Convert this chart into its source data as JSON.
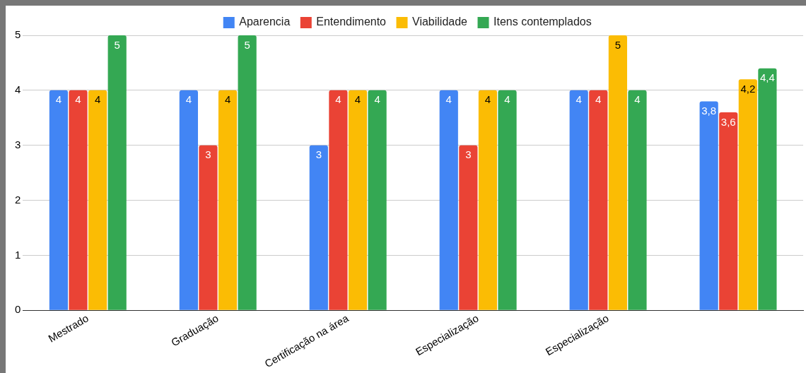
{
  "chart_data": {
    "type": "bar",
    "categories": [
      "Mestrado",
      "Graduação",
      "Certificação na área",
      "Especialização",
      "Especialização",
      null
    ],
    "series": [
      {
        "name": "Aparencia",
        "color": "#4285f4",
        "values": [
          4,
          4,
          3,
          4,
          4,
          3.8
        ],
        "value_labels": [
          "4",
          "4",
          "3",
          "4",
          "4",
          "3,8"
        ]
      },
      {
        "name": "Entendimento",
        "color": "#ea4335",
        "values": [
          4,
          3,
          4,
          3,
          4,
          3.6
        ],
        "value_labels": [
          "4",
          "3",
          "4",
          "3",
          "4",
          "3,6"
        ]
      },
      {
        "name": "Viabilidade",
        "color": "#fbbc04",
        "values": [
          4,
          4,
          4,
          4,
          5,
          4.2
        ],
        "value_labels": [
          "4",
          "4",
          "4",
          "4",
          "5",
          "4,2"
        ]
      },
      {
        "name": "Itens contemplados",
        "color": "#34a853",
        "values": [
          5,
          5,
          4,
          4,
          4,
          4.4
        ],
        "value_labels": [
          "5",
          "5",
          "4",
          "4",
          "4",
          "4,4"
        ]
      }
    ],
    "ylim": [
      0,
      5
    ],
    "yticks": [
      0,
      1,
      2,
      3,
      4,
      5
    ],
    "grid": "y",
    "legend": "top"
  }
}
